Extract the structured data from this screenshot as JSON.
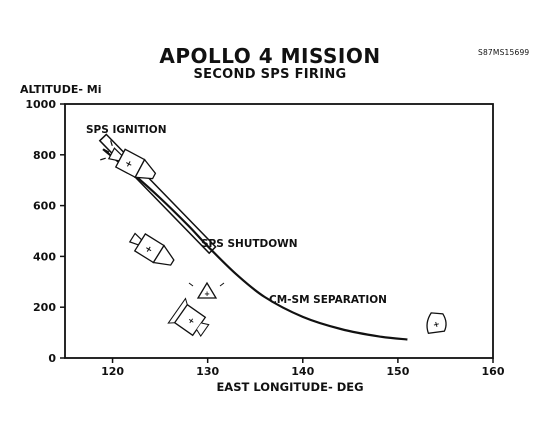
{
  "photo_id": "S87MS15699",
  "chart_data": {
    "type": "line",
    "title": "APOLLO 4 MISSION",
    "subtitle": "SECOND SPS FIRING",
    "xlabel": "EAST LONGITUDE- DEG",
    "ylabel": "ALTITUDE- Mi",
    "xlim": [
      115,
      160
    ],
    "ylim": [
      0,
      1000
    ],
    "x_ticks": [
      "120",
      "130",
      "140",
      "150",
      "160"
    ],
    "y_ticks": [
      "0",
      "200",
      "400",
      "600",
      "800",
      "1000"
    ],
    "grid": false,
    "series": [
      {
        "x": [
          119,
          122,
          125,
          128,
          130,
          133,
          136,
          140,
          144,
          148,
          151
        ],
        "y": [
          822,
          730,
          630,
          520,
          440,
          330,
          240,
          162,
          114,
          85,
          73
        ]
      }
    ],
    "bands": [
      {
        "x_start": 119,
        "x_end": 130.5,
        "y_start": 868,
        "y_end": 425
      }
    ],
    "annotations": [
      "SPS IGNITION",
      "SPS SHUTDOWN",
      "CM-SM SEPARATION"
    ]
  }
}
